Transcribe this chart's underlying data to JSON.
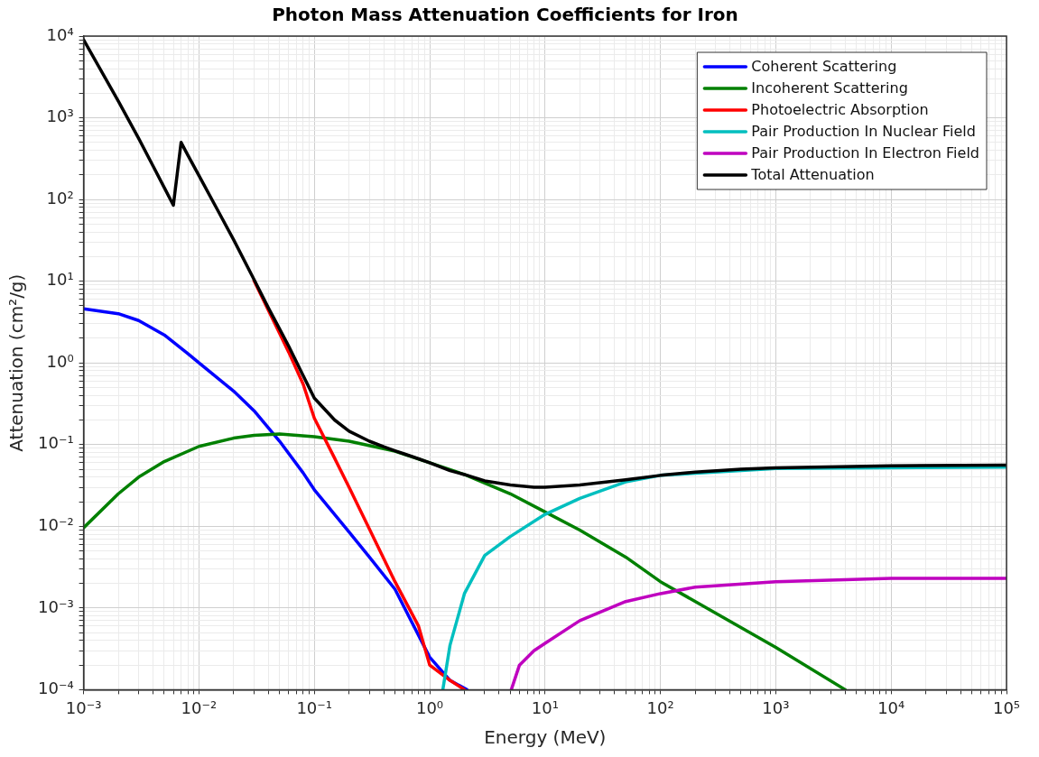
{
  "chart_data": {
    "type": "line",
    "title": "Photon Mass Attenuation Coefficients for Iron",
    "xlabel": "Energy (MeV)",
    "ylabel": "Attenuation (cm²/g)",
    "log": "xy",
    "grid": true,
    "legend": "top right",
    "xlim": [
      0.001,
      100000
    ],
    "ylim": [
      0.0001,
      10000
    ],
    "xticks": [
      {
        "value": 0.001,
        "label": "10⁻³"
      },
      {
        "value": 0.01,
        "label": "10⁻²"
      },
      {
        "value": 0.1,
        "label": "10⁻¹"
      },
      {
        "value": 1,
        "label": "10⁰"
      },
      {
        "value": 10,
        "label": "10¹"
      },
      {
        "value": 100,
        "label": "10²"
      },
      {
        "value": 1000,
        "label": "10³"
      },
      {
        "value": 10000,
        "label": "10⁴"
      },
      {
        "value": 100000,
        "label": "10⁵"
      },
      {
        "value": 0.002,
        "label": null
      },
      {
        "value": 0.003,
        "label": null
      },
      {
        "value": 0.004,
        "label": null
      },
      {
        "value": 0.005,
        "label": null
      },
      {
        "value": 0.006,
        "label": null
      },
      {
        "value": 0.007,
        "label": null
      },
      {
        "value": 0.008,
        "label": null
      },
      {
        "value": 0.009,
        "label": null
      },
      {
        "value": 0.02,
        "label": null
      },
      {
        "value": 0.03,
        "label": null
      },
      {
        "value": 0.04,
        "label": null
      },
      {
        "value": 0.05,
        "label": null
      },
      {
        "value": 0.06,
        "label": null
      },
      {
        "value": 0.07,
        "label": null
      },
      {
        "value": 0.08,
        "label": null
      },
      {
        "value": 0.09,
        "label": null
      },
      {
        "value": 0.2,
        "label": null
      },
      {
        "value": 0.3,
        "label": null
      },
      {
        "value": 0.4,
        "label": null
      },
      {
        "value": 0.5,
        "label": null
      },
      {
        "value": 0.6,
        "label": null
      },
      {
        "value": 0.7,
        "label": null
      },
      {
        "value": 0.8,
        "label": null
      },
      {
        "value": 0.9,
        "label": null
      },
      {
        "value": 2,
        "label": null
      },
      {
        "value": 3,
        "label": null
      },
      {
        "value": 4,
        "label": null
      },
      {
        "value": 5,
        "label": null
      },
      {
        "value": 6,
        "label": null
      },
      {
        "value": 7,
        "label": null
      },
      {
        "value": 8,
        "label": null
      },
      {
        "value": 9,
        "label": null
      },
      {
        "value": 20,
        "label": null
      },
      {
        "value": 30,
        "label": null
      },
      {
        "value": 40,
        "label": null
      },
      {
        "value": 50,
        "label": null
      },
      {
        "value": 60,
        "label": null
      },
      {
        "value": 70,
        "label": null
      },
      {
        "value": 80,
        "label": null
      },
      {
        "value": 90,
        "label": null
      },
      {
        "value": 200,
        "label": null
      },
      {
        "value": 300,
        "label": null
      },
      {
        "value": 400,
        "label": null
      },
      {
        "value": 500,
        "label": null
      },
      {
        "value": 600,
        "label": null
      },
      {
        "value": 700,
        "label": null
      },
      {
        "value": 800,
        "label": null
      },
      {
        "value": 900,
        "label": null
      },
      {
        "value": 2000,
        "label": null
      },
      {
        "value": 3000,
        "label": null
      },
      {
        "value": 4000,
        "label": null
      },
      {
        "value": 5000,
        "label": null
      },
      {
        "value": 6000,
        "label": null
      },
      {
        "value": 7000,
        "label": null
      },
      {
        "value": 8000,
        "label": null
      },
      {
        "value": 9000,
        "label": null
      },
      {
        "value": 20000,
        "label": null
      },
      {
        "value": 30000,
        "label": null
      },
      {
        "value": 40000,
        "label": null
      },
      {
        "value": 50000,
        "label": null
      },
      {
        "value": 60000,
        "label": null
      },
      {
        "value": 70000,
        "label": null
      },
      {
        "value": 80000,
        "label": null
      },
      {
        "value": 90000,
        "label": null
      }
    ],
    "yticks": [
      {
        "value": 0.0001,
        "label": "10⁻⁴"
      },
      {
        "value": 0.001,
        "label": "10⁻³"
      },
      {
        "value": 0.01,
        "label": "10⁻²"
      },
      {
        "value": 0.1,
        "label": "10⁻¹"
      },
      {
        "value": 1,
        "label": "10⁰"
      },
      {
        "value": 10,
        "label": "10¹"
      },
      {
        "value": 100,
        "label": "10²"
      },
      {
        "value": 1000,
        "label": "10³"
      },
      {
        "value": 10000,
        "label": "10⁴"
      },
      {
        "value": 0.0002,
        "label": null
      },
      {
        "value": 0.0003,
        "label": null
      },
      {
        "value": 0.0004,
        "label": null
      },
      {
        "value": 0.0005,
        "label": null
      },
      {
        "value": 0.0006,
        "label": null
      },
      {
        "value": 0.0007,
        "label": null
      },
      {
        "value": 0.0008,
        "label": null
      },
      {
        "value": 0.0009,
        "label": null
      },
      {
        "value": 0.002,
        "label": null
      },
      {
        "value": 0.003,
        "label": null
      },
      {
        "value": 0.004,
        "label": null
      },
      {
        "value": 0.005,
        "label": null
      },
      {
        "value": 0.006,
        "label": null
      },
      {
        "value": 0.007,
        "label": null
      },
      {
        "value": 0.008,
        "label": null
      },
      {
        "value": 0.009,
        "label": null
      },
      {
        "value": 0.02,
        "label": null
      },
      {
        "value": 0.03,
        "label": null
      },
      {
        "value": 0.04,
        "label": null
      },
      {
        "value": 0.05,
        "label": null
      },
      {
        "value": 0.06,
        "label": null
      },
      {
        "value": 0.07,
        "label": null
      },
      {
        "value": 0.08,
        "label": null
      },
      {
        "value": 0.09,
        "label": null
      },
      {
        "value": 0.2,
        "label": null
      },
      {
        "value": 0.3,
        "label": null
      },
      {
        "value": 0.4,
        "label": null
      },
      {
        "value": 0.5,
        "label": null
      },
      {
        "value": 0.6,
        "label": null
      },
      {
        "value": 0.7,
        "label": null
      },
      {
        "value": 0.8,
        "label": null
      },
      {
        "value": 0.9,
        "label": null
      },
      {
        "value": 2,
        "label": null
      },
      {
        "value": 3,
        "label": null
      },
      {
        "value": 4,
        "label": null
      },
      {
        "value": 5,
        "label": null
      },
      {
        "value": 6,
        "label": null
      },
      {
        "value": 7,
        "label": null
      },
      {
        "value": 8,
        "label": null
      },
      {
        "value": 9,
        "label": null
      },
      {
        "value": 20,
        "label": null
      },
      {
        "value": 30,
        "label": null
      },
      {
        "value": 40,
        "label": null
      },
      {
        "value": 50,
        "label": null
      },
      {
        "value": 60,
        "label": null
      },
      {
        "value": 70,
        "label": null
      },
      {
        "value": 80,
        "label": null
      },
      {
        "value": 90,
        "label": null
      },
      {
        "value": 200,
        "label": null
      },
      {
        "value": 300,
        "label": null
      },
      {
        "value": 400,
        "label": null
      },
      {
        "value": 500,
        "label": null
      },
      {
        "value": 600,
        "label": null
      },
      {
        "value": 700,
        "label": null
      },
      {
        "value": 800,
        "label": null
      },
      {
        "value": 900,
        "label": null
      },
      {
        "value": 2000,
        "label": null
      },
      {
        "value": 3000,
        "label": null
      },
      {
        "value": 4000,
        "label": null
      },
      {
        "value": 5000,
        "label": null
      },
      {
        "value": 6000,
        "label": null
      },
      {
        "value": 7000,
        "label": null
      },
      {
        "value": 8000,
        "label": null
      },
      {
        "value": 9000,
        "label": null
      }
    ],
    "series": [
      {
        "name": "Coherent Scattering",
        "color": "#0000ff",
        "x": [
          0.001,
          0.002,
          0.003,
          0.005,
          0.008,
          0.01,
          0.02,
          0.03,
          0.05,
          0.08,
          0.1,
          0.2,
          0.3,
          0.5,
          1,
          1.5,
          2.1
        ],
        "values": [
          4.6,
          4.0,
          3.3,
          2.2,
          1.3,
          1.0,
          0.45,
          0.26,
          0.11,
          0.045,
          0.028,
          0.0085,
          0.0042,
          0.0017,
          0.00025,
          0.00013,
          0.0001
        ]
      },
      {
        "name": "Incoherent Scattering",
        "color": "#008000",
        "x": [
          0.001,
          0.002,
          0.003,
          0.005,
          0.01,
          0.02,
          0.03,
          0.05,
          0.1,
          0.2,
          0.5,
          1,
          2,
          5,
          10,
          20,
          50,
          100,
          1000,
          4000
        ],
        "values": [
          0.0096,
          0.025,
          0.04,
          0.062,
          0.095,
          0.12,
          0.13,
          0.135,
          0.125,
          0.11,
          0.083,
          0.06,
          0.043,
          0.025,
          0.015,
          0.009,
          0.0042,
          0.0021,
          0.00033,
          0.0001
        ]
      },
      {
        "name": "Photoelectric Absorption",
        "color": "#ff0000",
        "x": [
          0.03,
          0.04,
          0.05,
          0.06,
          0.08,
          0.1,
          0.15,
          0.2,
          0.3,
          0.5,
          0.8,
          1,
          1.5,
          2
        ],
        "values": [
          10.2,
          4.4,
          2.3,
          1.35,
          0.55,
          0.21,
          0.068,
          0.03,
          0.0093,
          0.0021,
          0.0006,
          0.0002,
          0.00013,
          0.0001
        ]
      },
      {
        "name": "Pair Production In Nuclear Field",
        "color": "#00bfbf",
        "x": [
          1.3,
          1.5,
          2,
          3,
          5,
          10,
          20,
          50,
          100,
          1000,
          100000
        ],
        "values": [
          0.0001,
          0.00035,
          0.0015,
          0.0044,
          0.0075,
          0.014,
          0.022,
          0.035,
          0.042,
          0.051,
          0.053
        ]
      },
      {
        "name": "Pair Production In Electron Field",
        "color": "#bf00bf",
        "x": [
          5.1,
          6,
          8,
          10,
          20,
          50,
          100,
          200,
          1000,
          10000,
          100000
        ],
        "values": [
          0.0001,
          0.0002,
          0.0003,
          0.00037,
          0.0007,
          0.0012,
          0.0015,
          0.0018,
          0.0021,
          0.0023,
          0.0023
        ]
      },
      {
        "name": "Total Attenuation",
        "color": "#000000",
        "x": [
          0.001,
          0.002,
          0.003,
          0.004,
          0.005,
          0.006,
          0.007,
          0.008,
          0.01,
          0.015,
          0.02,
          0.03,
          0.04,
          0.05,
          0.06,
          0.08,
          0.1,
          0.15,
          0.2,
          0.3,
          0.4,
          0.5,
          0.6,
          0.8,
          1,
          1.5,
          2,
          3,
          5,
          8,
          10,
          20,
          50,
          100,
          200,
          500,
          1000,
          10000,
          100000
        ],
        "values": [
          9000,
          1600,
          560,
          257,
          140,
          85,
          500,
          350,
          196,
          68,
          32,
          10.5,
          4.7,
          2.6,
          1.6,
          0.7,
          0.37,
          0.2,
          0.146,
          0.11,
          0.094,
          0.084,
          0.077,
          0.067,
          0.06,
          0.048,
          0.043,
          0.036,
          0.032,
          0.03,
          0.03,
          0.032,
          0.037,
          0.042,
          0.046,
          0.05,
          0.052,
          0.055,
          0.056
        ]
      }
    ]
  }
}
